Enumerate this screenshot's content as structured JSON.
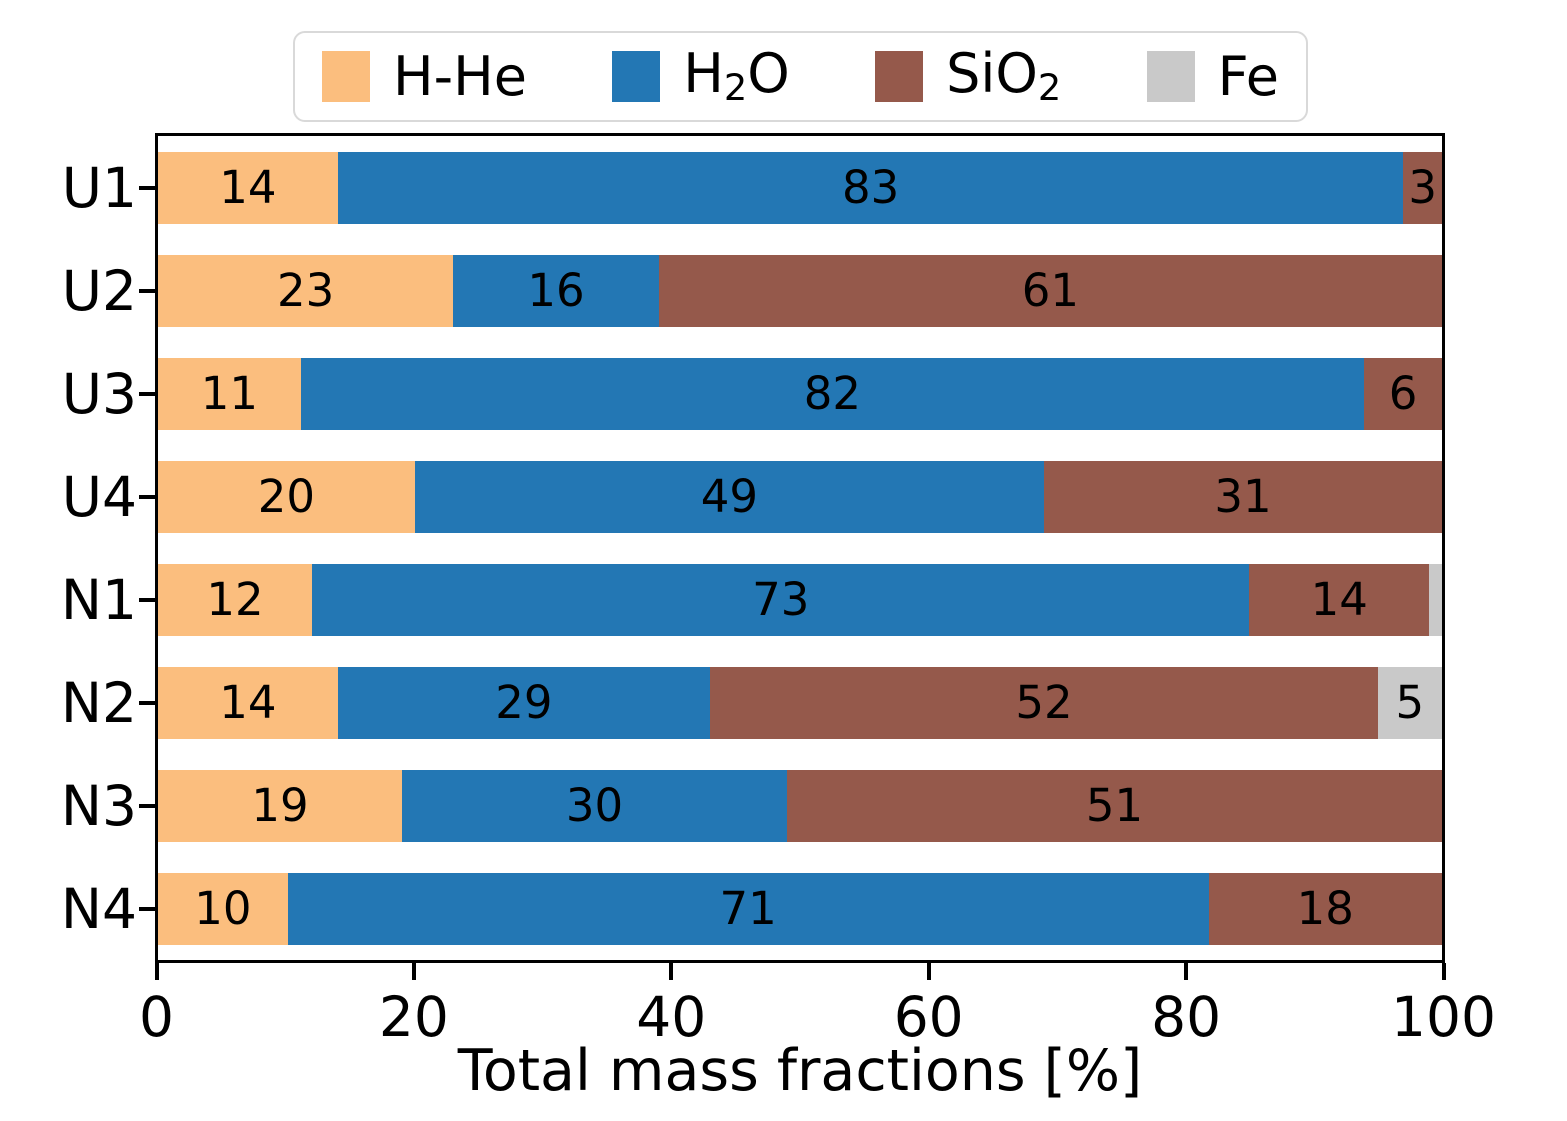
{
  "chart_data": {
    "type": "bar",
    "orientation": "horizontal",
    "stacked": true,
    "title": "",
    "xlabel": "Total mass fractions [%]",
    "ylabel": "",
    "xlim": [
      0,
      100
    ],
    "xticks": [
      0,
      20,
      40,
      60,
      80,
      100
    ],
    "grid": false,
    "legend_position": "top",
    "bar_label_min": 3,
    "categories": [
      "U1",
      "U2",
      "U3",
      "U4",
      "N1",
      "N2",
      "N3",
      "N4"
    ],
    "series": [
      {
        "name": "H-He",
        "color": "#FBBE7E",
        "label_parts": [
          [
            "H-He",
            false
          ]
        ],
        "values": [
          14,
          23,
          11,
          20,
          12,
          14,
          19,
          10
        ]
      },
      {
        "name": "H2O",
        "color": "#2377B4",
        "label_parts": [
          [
            "H",
            false
          ],
          [
            "2",
            true
          ],
          [
            "O",
            false
          ]
        ],
        "values": [
          83,
          16,
          82,
          49,
          73,
          29,
          30,
          71
        ]
      },
      {
        "name": "SiO2",
        "color": "#95594B",
        "label_parts": [
          [
            "SiO",
            false
          ],
          [
            "2",
            true
          ]
        ],
        "values": [
          3,
          61,
          6,
          31,
          14,
          52,
          51,
          18
        ]
      },
      {
        "name": "Fe",
        "color": "#C9C9C9",
        "label_parts": [
          [
            "Fe",
            false
          ]
        ],
        "values": [
          0,
          0,
          0,
          0,
          1,
          5,
          0,
          0
        ]
      }
    ],
    "colors": {
      "axis": "#000000",
      "background": "#FFFFFF",
      "legend_border": "#D9D9D9",
      "bar_label": "#000000"
    }
  }
}
